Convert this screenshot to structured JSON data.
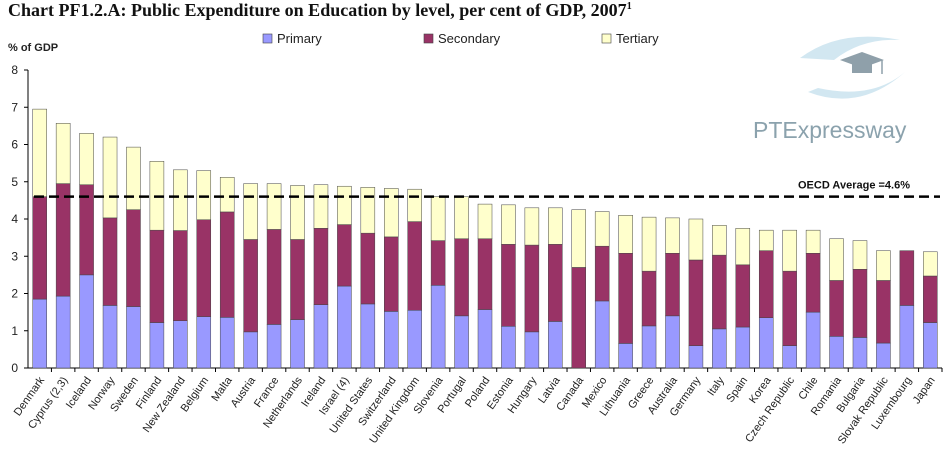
{
  "chart_data": {
    "type": "bar",
    "stacked": true,
    "title": "Chart PF1.2.A: Public Expenditure on Education by level, per cent of GDP, 2007",
    "title_footnote": "1",
    "ylabel": "% of GDP",
    "xlabel": "",
    "ylim": [
      0,
      8
    ],
    "yticks": [
      0,
      1,
      2,
      3,
      4,
      5,
      6,
      7,
      8
    ],
    "grid": false,
    "legend_position": "top",
    "categories": [
      "Denmark",
      "Cyprus (2,3)",
      "Iceland",
      "Norway",
      "Sweden",
      "Finland",
      "New Zealand",
      "Belgium",
      "Malta",
      "Austria",
      "France",
      "Netherlands",
      "Ireland",
      "Israel (4)",
      "United States",
      "Switzerland",
      "United Kingdom",
      "Slovenia",
      "Portugal",
      "Poland",
      "Estonia",
      "Hungary",
      "Latvia",
      "Canada",
      "Mexico",
      "Lithuania",
      "Greece",
      "Australia",
      "Germany",
      "Italy",
      "Spain",
      "Korea",
      "Czech Republic",
      "Chile",
      "Romania",
      "Bulgaria",
      "Slovak Republic",
      "Luxembourg",
      "Japan"
    ],
    "series": [
      {
        "name": "Primary",
        "color": "#9999ff",
        "values": [
          1.85,
          1.93,
          2.5,
          1.68,
          1.65,
          1.22,
          1.27,
          1.38,
          1.36,
          0.97,
          1.17,
          1.3,
          1.7,
          2.2,
          1.72,
          1.52,
          1.55,
          2.22,
          1.4,
          1.57,
          1.12,
          0.97,
          1.25,
          0.0,
          1.8,
          0.66,
          1.13,
          1.4,
          0.6,
          1.05,
          1.1,
          1.35,
          0.6,
          1.5,
          0.85,
          0.82,
          0.67,
          1.68,
          1.22
        ]
      },
      {
        "name": "Secondary",
        "color": "#993366",
        "values": [
          2.75,
          3.02,
          2.42,
          2.35,
          2.6,
          2.48,
          2.42,
          2.6,
          2.83,
          2.48,
          2.55,
          2.15,
          2.05,
          1.65,
          1.9,
          2.0,
          2.38,
          1.2,
          2.07,
          1.9,
          2.2,
          2.33,
          2.07,
          2.7,
          1.47,
          2.42,
          1.47,
          1.68,
          2.3,
          1.98,
          1.67,
          1.8,
          2.0,
          1.58,
          1.5,
          1.83,
          1.68,
          1.47,
          1.25
        ]
      },
      {
        "name": "Tertiary",
        "color": "#ffffcc",
        "values": [
          2.35,
          1.62,
          1.38,
          2.17,
          1.68,
          1.85,
          1.63,
          1.32,
          0.93,
          1.5,
          1.23,
          1.45,
          1.17,
          1.03,
          1.23,
          1.3,
          0.87,
          1.18,
          1.13,
          0.93,
          1.06,
          1.0,
          0.98,
          1.55,
          0.93,
          1.02,
          1.45,
          0.95,
          1.1,
          0.8,
          0.98,
          0.55,
          1.1,
          0.62,
          1.12,
          0.77,
          0.8,
          0.0,
          0.65
        ]
      }
    ],
    "reference_line": {
      "label": "OECD Average =4.6%",
      "value": 4.6
    }
  },
  "watermark": {
    "text": "PTExpressway",
    "color": "#8ba2ad"
  }
}
